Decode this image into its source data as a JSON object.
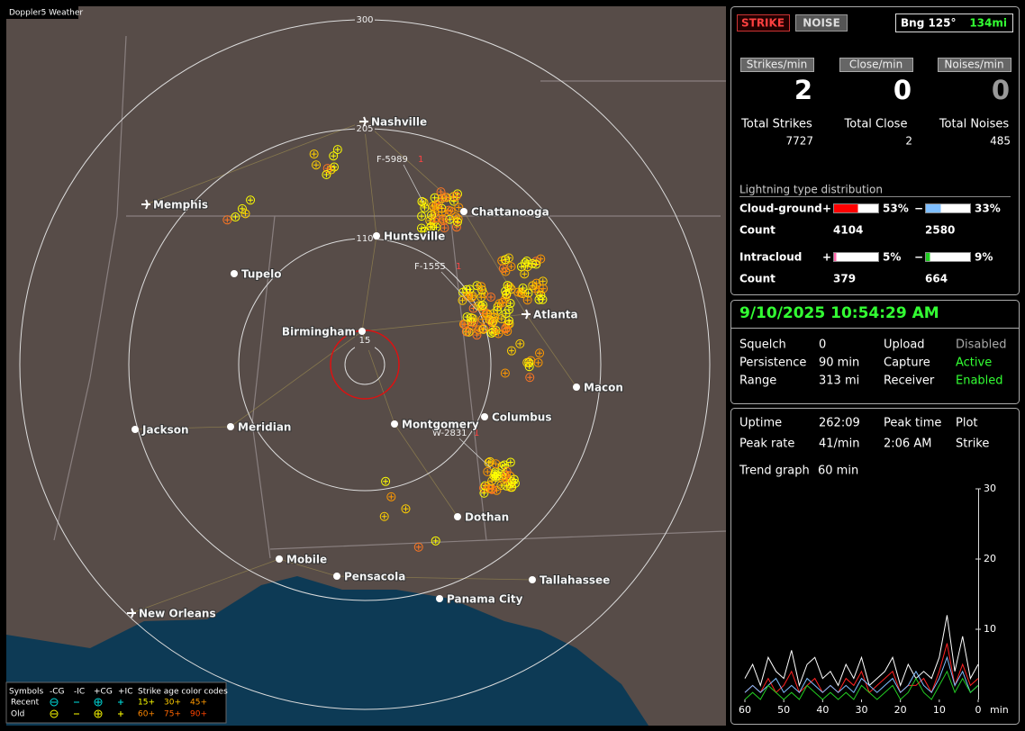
{
  "map": {
    "brand": "Doppler5 Weather",
    "rings": [
      "300",
      "205",
      "110",
      "15"
    ],
    "cities": [
      "Nashville",
      "Memphis",
      "Chattanooga",
      "Huntsville",
      "Tupelo",
      "Birmingham",
      "Atlanta",
      "Macon",
      "Columbus",
      "Montgomery",
      "Meridian",
      "Jackson",
      "Dothan",
      "Mobile",
      "Pensacola",
      "Tallahassee",
      "Panama City",
      "New Orleans"
    ],
    "flashes": [
      "F-5989",
      "F-1555",
      "W-2831"
    ],
    "flash_count": "1",
    "legend": {
      "header": [
        "Symbols",
        "-CG",
        "-IC",
        "+CG",
        "+IC"
      ],
      "title": "Strike age color codes",
      "rows": [
        {
          "label": "Recent",
          "ages": [
            "15+",
            "30+",
            "45+"
          ]
        },
        {
          "label": "Old",
          "ages": [
            "60+",
            "75+",
            "90+"
          ]
        }
      ]
    }
  },
  "status": {
    "buttons": [
      "STRIKE",
      "NOISE"
    ],
    "bearing": "Bng 125°",
    "distance": "134mi",
    "rates": [
      {
        "label": "Strikes/min",
        "value": 2
      },
      {
        "label": "Close/min",
        "value": 0
      },
      {
        "label": "Noises/min",
        "value": 0
      }
    ],
    "totals": [
      {
        "label": "Total Strikes",
        "value": 7727
      },
      {
        "label": "Total Close",
        "value": 2
      },
      {
        "label": "Total Noises",
        "value": 485
      }
    ],
    "distribution": {
      "title": "Lightning type distribution",
      "count_label": "Count",
      "rows": [
        {
          "label": "Cloud-ground",
          "positive": {
            "sign": "+",
            "value": 53,
            "value_label": "53%",
            "count": 4104,
            "color": "#ff0000"
          },
          "negative": {
            "sign": "−",
            "value": 33,
            "value_label": "33%",
            "count": 2580,
            "color": "#7fbfff"
          }
        },
        {
          "label": "Intracloud",
          "positive": {
            "sign": "+",
            "value": 5,
            "value_label": "5%",
            "count": 379,
            "color": "#ff66aa"
          },
          "negative": {
            "sign": "−",
            "value": 9,
            "value_label": "9%",
            "count": 664,
            "color": "#22cc22"
          }
        }
      ]
    }
  },
  "datetime": "9/10/2025 10:54:29 AM",
  "settings": [
    [
      "Squelch",
      "0",
      "Upload",
      "Disabled"
    ],
    [
      "Persistence",
      "90 min",
      "Capture",
      "Active"
    ],
    [
      "Range",
      "313 mi",
      "Receiver",
      "Enabled"
    ]
  ],
  "uptime": [
    [
      "Uptime",
      "262:09",
      "Peak time",
      "Plot"
    ],
    [
      "Peak rate",
      "41/min",
      "2:06 AM",
      "Strike"
    ]
  ],
  "trend": [
    "Trend graph",
    "60 min"
  ],
  "chart_data": {
    "type": "line",
    "x": [
      60,
      58,
      56,
      54,
      52,
      50,
      48,
      46,
      44,
      42,
      40,
      38,
      36,
      34,
      32,
      30,
      28,
      26,
      24,
      22,
      20,
      18,
      16,
      14,
      12,
      10,
      8,
      6,
      4,
      2,
      0
    ],
    "xlim": [
      60,
      0
    ],
    "xticks": [
      60,
      50,
      40,
      30,
      20,
      10,
      0
    ],
    "xlabel": "min",
    "ylim": [
      0,
      30
    ],
    "yticks": [
      10,
      20,
      30
    ],
    "series": [
      {
        "color": "#ffffff",
        "values": [
          3,
          5,
          2,
          6,
          4,
          3,
          7,
          2,
          5,
          6,
          3,
          4,
          2,
          5,
          3,
          6,
          2,
          3,
          4,
          6,
          2,
          5,
          3,
          4,
          3,
          6,
          12,
          4,
          9,
          3,
          5
        ]
      },
      {
        "color": "#ff2222",
        "values": [
          1,
          2,
          1,
          3,
          1,
          2,
          4,
          1,
          2,
          3,
          1,
          2,
          1,
          3,
          2,
          4,
          1,
          2,
          3,
          4,
          1,
          2,
          2,
          3,
          1,
          4,
          8,
          2,
          5,
          2,
          3
        ]
      },
      {
        "color": "#7fbfff",
        "values": [
          1,
          2,
          1,
          2,
          3,
          1,
          2,
          1,
          3,
          2,
          1,
          2,
          1,
          2,
          1,
          3,
          2,
          1,
          2,
          3,
          1,
          2,
          4,
          2,
          1,
          3,
          6,
          2,
          4,
          1,
          2
        ]
      },
      {
        "color": "#22cc22",
        "values": [
          0,
          1,
          0,
          2,
          1,
          0,
          1,
          0,
          2,
          1,
          0,
          1,
          0,
          1,
          0,
          2,
          1,
          0,
          1,
          2,
          0,
          1,
          3,
          1,
          0,
          2,
          4,
          1,
          3,
          1,
          2
        ]
      }
    ]
  }
}
